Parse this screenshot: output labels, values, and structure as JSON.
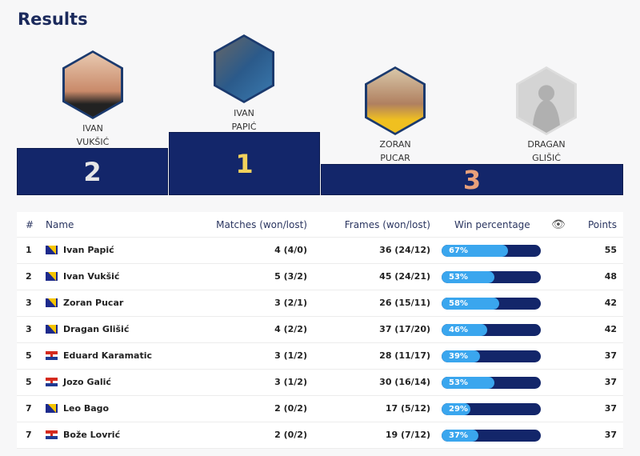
{
  "title": "Results",
  "podium": [
    {
      "place": "2",
      "first": "IVAN",
      "last": "VUKŠIĆ"
    },
    {
      "place": "1",
      "first": "IVAN",
      "last": "PAPIĆ"
    },
    {
      "place": "3",
      "first": "ZORAN",
      "last": "PUCAR"
    },
    {
      "place": "3",
      "first": "DRAGAN",
      "last": "GLIŠIĆ"
    }
  ],
  "headers": {
    "rank": "#",
    "name": "Name",
    "matches": "Matches (won/lost)",
    "frames": "Frames (won/lost)",
    "win": "Win percentage",
    "eye_icon": "eye-icon",
    "points": "Points"
  },
  "colors": {
    "navy": "#13266a",
    "bar_fill": "#3aa6ee",
    "gold": "#f2d15c",
    "silver": "#e6e6e6",
    "bronze": "#e8a07a"
  },
  "rows": [
    {
      "rank": "1",
      "flag": "bosnia",
      "name": "Ivan Papić",
      "matches": "4 (4/0)",
      "frames": "36 (24/12)",
      "win": 67,
      "win_label": "67%",
      "points": "55"
    },
    {
      "rank": "2",
      "flag": "bosnia",
      "name": "Ivan Vukšić",
      "matches": "5 (3/2)",
      "frames": "45 (24/21)",
      "win": 53,
      "win_label": "53%",
      "points": "48"
    },
    {
      "rank": "3",
      "flag": "bosnia",
      "name": "Zoran Pucar",
      "matches": "3 (2/1)",
      "frames": "26 (15/11)",
      "win": 58,
      "win_label": "58%",
      "points": "42"
    },
    {
      "rank": "3",
      "flag": "bosnia",
      "name": "Dragan Glišić",
      "matches": "4 (2/2)",
      "frames": "37 (17/20)",
      "win": 46,
      "win_label": "46%",
      "points": "42"
    },
    {
      "rank": "5",
      "flag": "croatia",
      "name": "Eduard Karamatic",
      "matches": "3 (1/2)",
      "frames": "28 (11/17)",
      "win": 39,
      "win_label": "39%",
      "points": "37"
    },
    {
      "rank": "5",
      "flag": "croatia",
      "name": "Jozo Galić",
      "matches": "3 (1/2)",
      "frames": "30 (16/14)",
      "win": 53,
      "win_label": "53%",
      "points": "37"
    },
    {
      "rank": "7",
      "flag": "bosnia",
      "name": "Leo Bago",
      "matches": "2 (0/2)",
      "frames": "17 (5/12)",
      "win": 29,
      "win_label": "29%",
      "points": "37"
    },
    {
      "rank": "7",
      "flag": "croatia",
      "name": "Bože Lovrić",
      "matches": "2 (0/2)",
      "frames": "19 (7/12)",
      "win": 37,
      "win_label": "37%",
      "points": "37"
    }
  ]
}
